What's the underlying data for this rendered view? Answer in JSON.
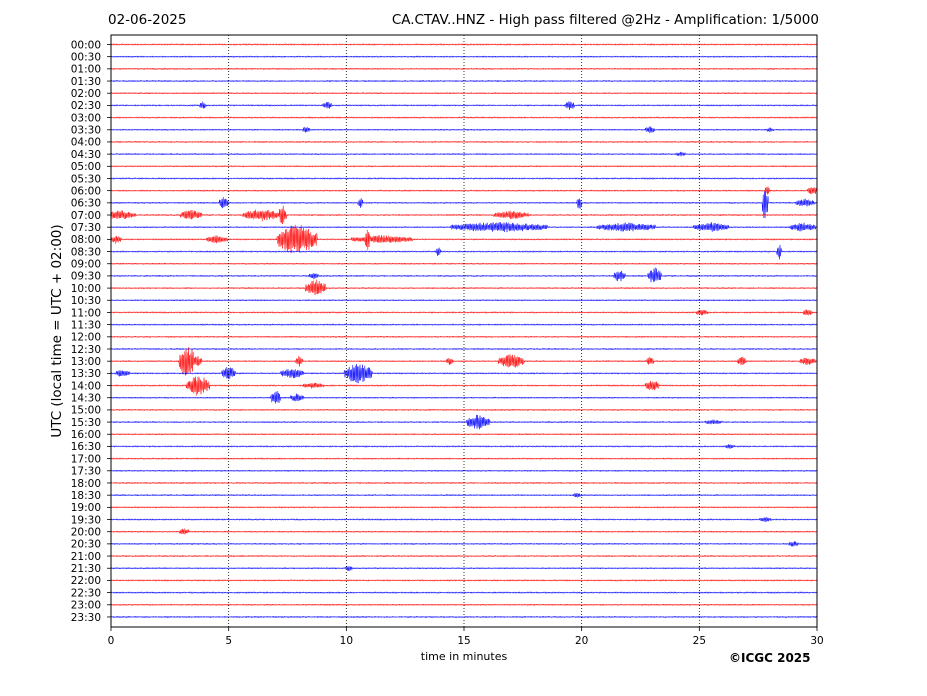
{
  "header": {
    "date": "02-06-2025",
    "title": "CA.CTAV..HNZ - High pass filtered @2Hz - Amplification: 1/5000"
  },
  "footer": {
    "copyright": "©ICGC 2025"
  },
  "chart_data": {
    "type": "helicorder",
    "xlabel": "time in minutes",
    "ylabel": "UTC (local time = UTC + 02:00)",
    "xlim": [
      0,
      30
    ],
    "x_ticks": [
      0,
      5,
      10,
      15,
      20,
      25,
      30
    ],
    "vertical_gridlines_at": [
      5,
      10,
      15,
      20,
      25
    ],
    "grid": "dotted vertical",
    "trace_colors": [
      "#ff0000",
      "#0000ff"
    ],
    "rows": [
      "00:00",
      "00:30",
      "01:00",
      "01:30",
      "02:00",
      "02:30",
      "03:00",
      "03:30",
      "04:00",
      "04:30",
      "05:00",
      "05:30",
      "06:00",
      "06:30",
      "07:00",
      "07:30",
      "08:00",
      "08:30",
      "09:00",
      "09:30",
      "10:00",
      "10:30",
      "11:00",
      "11:30",
      "12:00",
      "12:30",
      "13:00",
      "13:30",
      "14:00",
      "14:30",
      "15:00",
      "15:30",
      "16:00",
      "16:30",
      "17:00",
      "17:30",
      "18:00",
      "18:30",
      "19:00",
      "19:30",
      "20:00",
      "20:30",
      "21:00",
      "21:30",
      "22:00",
      "22:30",
      "23:00",
      "23:30"
    ],
    "events": [
      {
        "row": "02:30",
        "x": 3.9,
        "amp": 0.3,
        "dur": 0.2
      },
      {
        "row": "02:30",
        "x": 9.2,
        "amp": 0.3,
        "dur": 0.3
      },
      {
        "row": "02:30",
        "x": 19.5,
        "amp": 0.35,
        "dur": 0.3
      },
      {
        "row": "03:30",
        "x": 8.3,
        "amp": 0.25,
        "dur": 0.2
      },
      {
        "row": "03:30",
        "x": 22.9,
        "amp": 0.3,
        "dur": 0.3
      },
      {
        "row": "03:30",
        "x": 28.0,
        "amp": 0.15,
        "dur": 0.2
      },
      {
        "row": "04:30",
        "x": 24.2,
        "amp": 0.15,
        "dur": 0.3
      },
      {
        "row": "06:00",
        "x": 27.9,
        "amp": 0.4,
        "dur": 0.1
      },
      {
        "row": "06:00",
        "x": 29.8,
        "amp": 0.35,
        "dur": 0.3
      },
      {
        "row": "06:30",
        "x": 4.8,
        "amp": 0.5,
        "dur": 0.3
      },
      {
        "row": "06:30",
        "x": 10.6,
        "amp": 0.5,
        "dur": 0.1
      },
      {
        "row": "06:30",
        "x": 19.9,
        "amp": 0.6,
        "dur": 0.1
      },
      {
        "row": "06:30",
        "x": 27.8,
        "amp": 1.8,
        "dur": 0.15
      },
      {
        "row": "06:30",
        "x": 29.5,
        "amp": 0.3,
        "dur": 0.7
      },
      {
        "row": "07:00",
        "x": 0.4,
        "amp": 0.35,
        "dur": 1.2
      },
      {
        "row": "07:00",
        "x": 3.4,
        "amp": 0.4,
        "dur": 0.8
      },
      {
        "row": "07:00",
        "x": 6.4,
        "amp": 0.5,
        "dur": 1.5
      },
      {
        "row": "07:00",
        "x": 7.3,
        "amp": 0.9,
        "dur": 0.2
      },
      {
        "row": "07:00",
        "x": 17.0,
        "amp": 0.3,
        "dur": 1.4
      },
      {
        "row": "07:30",
        "x": 16.5,
        "amp": 0.4,
        "dur": 4.0
      },
      {
        "row": "07:30",
        "x": 21.9,
        "amp": 0.35,
        "dur": 2.4
      },
      {
        "row": "07:30",
        "x": 25.5,
        "amp": 0.35,
        "dur": 1.4
      },
      {
        "row": "07:30",
        "x": 29.4,
        "amp": 0.35,
        "dur": 1.0
      },
      {
        "row": "08:00",
        "x": 7.9,
        "amp": 1.4,
        "dur": 1.6
      },
      {
        "row": "08:00",
        "x": 10.9,
        "amp": 0.8,
        "dur": 0.1
      },
      {
        "row": "08:00",
        "x": 11.5,
        "amp": 0.3,
        "dur": 2.5
      },
      {
        "row": "08:00",
        "x": 4.5,
        "amp": 0.3,
        "dur": 0.8
      },
      {
        "row": "08:00",
        "x": 0.2,
        "amp": 0.3,
        "dur": 0.4
      },
      {
        "row": "08:30",
        "x": 13.9,
        "amp": 0.4,
        "dur": 0.1
      },
      {
        "row": "08:30",
        "x": 28.4,
        "amp": 0.7,
        "dur": 0.1
      },
      {
        "row": "09:30",
        "x": 8.6,
        "amp": 0.3,
        "dur": 0.3
      },
      {
        "row": "09:30",
        "x": 21.6,
        "amp": 0.5,
        "dur": 0.4
      },
      {
        "row": "09:30",
        "x": 23.1,
        "amp": 0.7,
        "dur": 0.5
      },
      {
        "row": "10:00",
        "x": 8.7,
        "amp": 0.7,
        "dur": 0.8
      },
      {
        "row": "11:00",
        "x": 25.1,
        "amp": 0.2,
        "dur": 0.4
      },
      {
        "row": "11:00",
        "x": 29.6,
        "amp": 0.25,
        "dur": 0.3
      },
      {
        "row": "13:00",
        "x": 3.2,
        "amp": 1.5,
        "dur": 0.5
      },
      {
        "row": "13:00",
        "x": 3.6,
        "amp": 0.5,
        "dur": 0.4
      },
      {
        "row": "13:00",
        "x": 8.0,
        "amp": 0.5,
        "dur": 0.2
      },
      {
        "row": "13:00",
        "x": 14.4,
        "amp": 0.3,
        "dur": 0.2
      },
      {
        "row": "13:00",
        "x": 17.0,
        "amp": 0.6,
        "dur": 1.0
      },
      {
        "row": "13:00",
        "x": 22.9,
        "amp": 0.4,
        "dur": 0.2
      },
      {
        "row": "13:00",
        "x": 26.8,
        "amp": 0.35,
        "dur": 0.3
      },
      {
        "row": "13:00",
        "x": 29.6,
        "amp": 0.3,
        "dur": 0.6
      },
      {
        "row": "13:30",
        "x": 0.5,
        "amp": 0.3,
        "dur": 0.5
      },
      {
        "row": "13:30",
        "x": 5.0,
        "amp": 0.6,
        "dur": 0.5
      },
      {
        "row": "13:30",
        "x": 7.7,
        "amp": 0.4,
        "dur": 0.9
      },
      {
        "row": "13:30",
        "x": 10.5,
        "amp": 0.9,
        "dur": 1.1
      },
      {
        "row": "14:00",
        "x": 3.7,
        "amp": 0.9,
        "dur": 0.9
      },
      {
        "row": "14:00",
        "x": 23.0,
        "amp": 0.45,
        "dur": 0.5
      },
      {
        "row": "14:00",
        "x": 8.6,
        "amp": 0.2,
        "dur": 0.8
      },
      {
        "row": "14:30",
        "x": 7.0,
        "amp": 0.7,
        "dur": 0.3
      },
      {
        "row": "14:30",
        "x": 7.9,
        "amp": 0.3,
        "dur": 0.5
      },
      {
        "row": "15:30",
        "x": 15.6,
        "amp": 0.6,
        "dur": 0.9
      },
      {
        "row": "15:30",
        "x": 25.6,
        "amp": 0.15,
        "dur": 0.6
      },
      {
        "row": "16:30",
        "x": 26.3,
        "amp": 0.15,
        "dur": 0.3
      },
      {
        "row": "18:30",
        "x": 19.8,
        "amp": 0.2,
        "dur": 0.2
      },
      {
        "row": "19:30",
        "x": 27.8,
        "amp": 0.2,
        "dur": 0.4
      },
      {
        "row": "20:00",
        "x": 3.1,
        "amp": 0.25,
        "dur": 0.3
      },
      {
        "row": "20:30",
        "x": 29.0,
        "amp": 0.2,
        "dur": 0.3
      },
      {
        "row": "21:30",
        "x": 10.1,
        "amp": 0.2,
        "dur": 0.2
      }
    ]
  }
}
